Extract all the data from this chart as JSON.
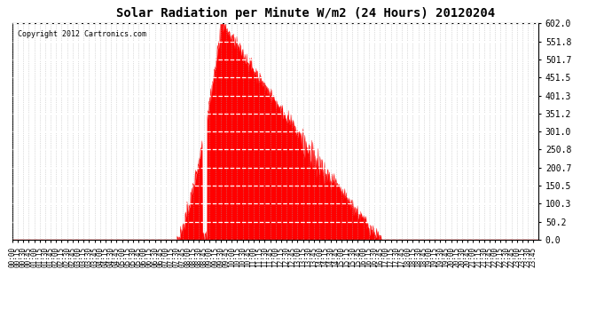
{
  "title": "Solar Radiation per Minute W/m2 (24 Hours) 20120204",
  "copyright_text": "Copyright 2012 Cartronics.com",
  "fill_color": "#FF0000",
  "line_color": "#FF0000",
  "dashed_line_color": "#FF0000",
  "background_color": "#FFFFFF",
  "ytick_labels": [
    "0.0",
    "50.2",
    "100.3",
    "150.5",
    "200.7",
    "250.8",
    "301.0",
    "351.2",
    "401.3",
    "451.5",
    "501.7",
    "551.8",
    "602.0"
  ],
  "ytick_values": [
    0.0,
    50.2,
    100.3,
    150.5,
    200.7,
    250.8,
    301.0,
    351.2,
    401.3,
    451.5,
    501.7,
    551.8,
    602.0
  ],
  "ymax": 602.0,
  "ymin": 0.0,
  "total_minutes": 1440,
  "sunrise_minute": 450,
  "sunset_minute": 1010,
  "peak_minute": 570,
  "peak_value": 602.0
}
